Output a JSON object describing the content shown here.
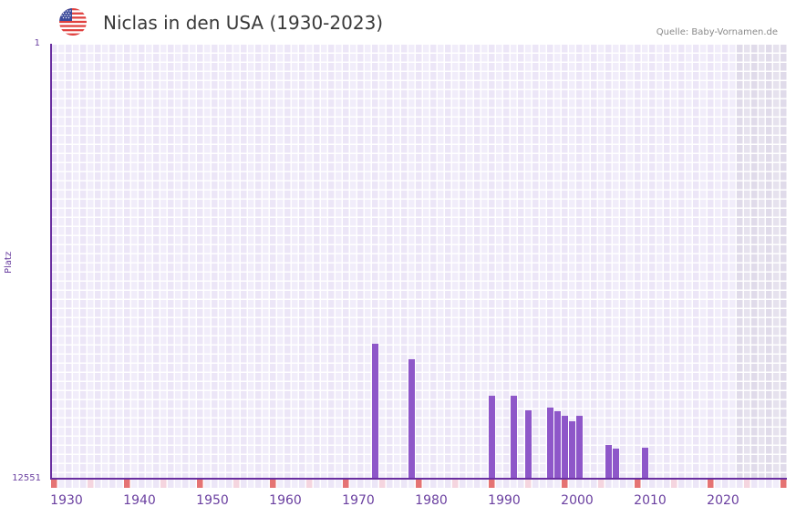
{
  "header": {
    "title": "Niclas in den USA (1930-2023)",
    "flag_icon": "us-flag-icon",
    "source": "Quelle: Baby-Vornamen.de"
  },
  "colors": {
    "bar": "#8e57c9",
    "axis": "#6a2fa0",
    "grid_a": "#f1edfa",
    "grid_b": "#ece6f7",
    "grid_line": "#ffffff",
    "shade_a": "#e6e2ee",
    "shade_b": "#e0dbea",
    "marker_strong": "#e57373",
    "marker_light": "#f5d5df",
    "label": "#6a3fa0"
  },
  "chart_data": {
    "type": "bar",
    "title": "Niclas in den USA (1930-2023)",
    "xlabel": "",
    "ylabel": "Platz",
    "y_inverted": true,
    "ylim": [
      1,
      12551
    ],
    "xlim": [
      1928,
      2028
    ],
    "x_ticks": [
      1930,
      1940,
      1950,
      1960,
      1970,
      1980,
      1990,
      2000,
      2010,
      2020
    ],
    "y_ticks": [
      1,
      12551
    ],
    "grid": true,
    "legend": null,
    "shaded_region": [
      2022,
      2028
    ],
    "source": "Quelle: Baby-Vornamen.de",
    "categories": [
      1972,
      1977,
      1988,
      1991,
      1993,
      1996,
      1997,
      1998,
      1999,
      2000,
      2004,
      2005,
      2009
    ],
    "values": [
      8657,
      9104,
      10157,
      10157,
      10578,
      10499,
      10604,
      10736,
      10894,
      10736,
      11578,
      11683,
      11657
    ]
  },
  "axis": {
    "y_top": "1",
    "y_bottom": "12551",
    "y_title": "Platz",
    "x_ticks": [
      "1930",
      "1940",
      "1950",
      "1960",
      "1970",
      "1980",
      "1990",
      "2000",
      "2010",
      "2020"
    ]
  }
}
